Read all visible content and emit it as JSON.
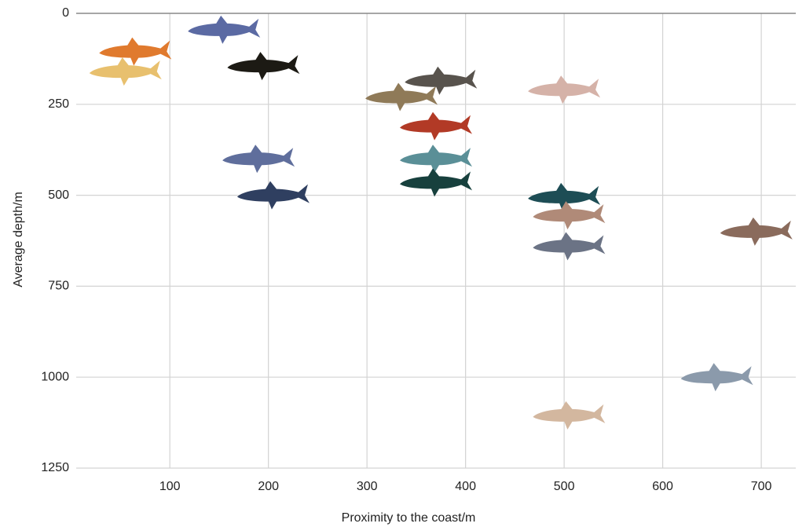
{
  "chart_data": {
    "type": "scatter",
    "xlabel": "Proximity to the coast/m",
    "ylabel": "Average depth/m",
    "x": [
      65,
      55,
      155,
      195,
      335,
      375,
      500,
      370,
      370,
      370,
      190,
      205,
      500,
      505,
      505,
      695,
      655,
      505
    ],
    "values": [
      105,
      160,
      45,
      145,
      230,
      185,
      210,
      310,
      400,
      465,
      400,
      500,
      505,
      555,
      640,
      600,
      1000,
      1105
    ],
    "colors": [
      "#e07a2e",
      "#e8c06e",
      "#5b6aa3",
      "#1c1a14",
      "#8f7a58",
      "#58534d",
      "#d5b2a8",
      "#b23a26",
      "#5a8f97",
      "#17403d",
      "#5f6e9c",
      "#2f3f60",
      "#1d4d55",
      "#b08a78",
      "#6b7385",
      "#8a6b5c",
      "#8b9aab",
      "#d3b79f"
    ],
    "xlim": [
      5,
      735
    ],
    "ylim": [
      0,
      1250
    ],
    "xticks": [
      100,
      200,
      300,
      400,
      500,
      600,
      700
    ],
    "yticks": [
      0,
      250,
      500,
      750,
      1000,
      1250
    ],
    "y_inverted": true,
    "grid": true
  }
}
